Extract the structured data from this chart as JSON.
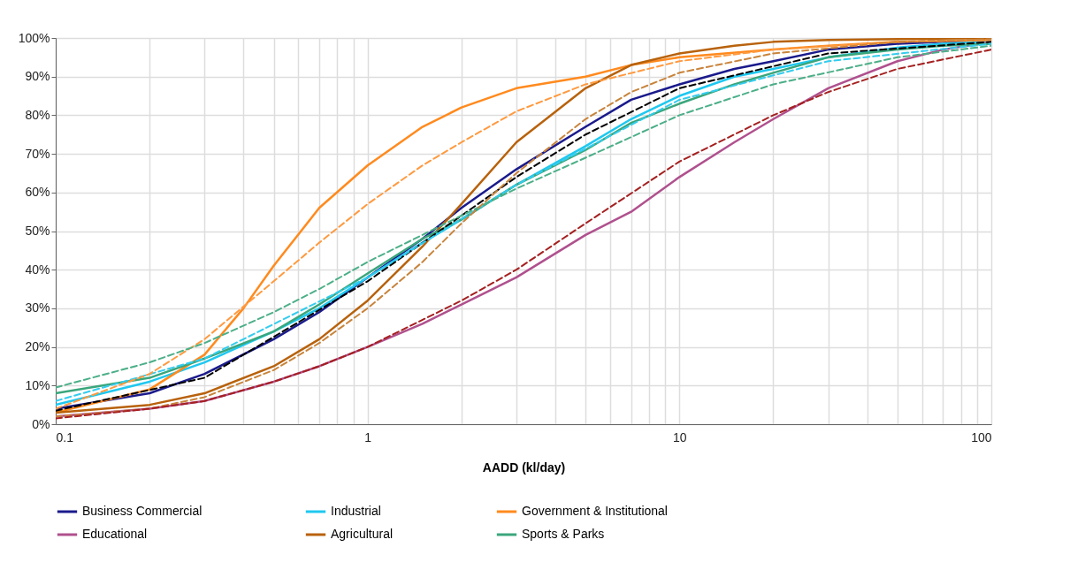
{
  "chart_data": {
    "type": "line",
    "xlabel": "AADD (kl/day)",
    "log": "x",
    "grid": true,
    "legend": "bottom",
    "marker": "none",
    "line_style": "solid",
    "xlim": [
      0.1,
      100
    ],
    "xticks": [
      0.1,
      {
        "value": 0.2,
        "label": null
      },
      {
        "value": 0.3,
        "label": null
      },
      {
        "value": 0.4,
        "label": null
      },
      {
        "value": 0.5,
        "label": null
      },
      {
        "value": 0.6,
        "label": null
      },
      {
        "value": 0.7,
        "label": null
      },
      {
        "value": 0.8,
        "label": null
      },
      {
        "value": 0.9,
        "label": null
      },
      1,
      {
        "value": 2,
        "label": null
      },
      {
        "value": 3,
        "label": null
      },
      {
        "value": 4,
        "label": null
      },
      {
        "value": 5,
        "label": null
      },
      {
        "value": 6,
        "label": null
      },
      {
        "value": 7,
        "label": null
      },
      {
        "value": 8,
        "label": null
      },
      {
        "value": 9,
        "label": null
      },
      10,
      {
        "value": 20,
        "label": null
      },
      {
        "value": 30,
        "label": null
      },
      {
        "value": 40,
        "label": null
      },
      {
        "value": 50,
        "label": null
      },
      {
        "value": 60,
        "label": null
      },
      {
        "value": 70,
        "label": null
      },
      {
        "value": 80,
        "label": null
      },
      {
        "value": 90,
        "label": null
      },
      100
    ],
    "ylim": [
      0,
      100
    ],
    "yticks": [
      {
        "value": 0,
        "label": "0%"
      },
      {
        "value": 10,
        "label": "10%"
      },
      {
        "value": 20,
        "label": "20%"
      },
      {
        "value": 30,
        "label": "30%"
      },
      {
        "value": 40,
        "label": "40%"
      },
      {
        "value": 50,
        "label": "50%"
      },
      {
        "value": 60,
        "label": "60%"
      },
      {
        "value": 70,
        "label": "70%"
      },
      {
        "value": 80,
        "label": "80%"
      },
      {
        "value": 90,
        "label": "90%"
      },
      {
        "value": 100,
        "label": "100%"
      }
    ],
    "series": [
      {
        "color": "#000000",
        "line_style": "dashed",
        "x": [
          0.1,
          0.3,
          1,
          2,
          3,
          5,
          10,
          30,
          100
        ],
        "values": [
          3.5,
          12,
          37,
          54,
          64,
          75,
          87,
          96,
          99
        ]
      },
      {
        "color": "#33ccee",
        "line_style": "dashed",
        "x": [
          0.1,
          0.3,
          1,
          3,
          10,
          30,
          100
        ],
        "values": [
          6,
          17,
          38,
          62,
          84,
          94,
          98.5
        ]
      },
      {
        "color": "#ff9a40",
        "line_style": "dashed",
        "x": [
          0.1,
          0.2,
          0.3,
          0.5,
          0.7,
          1,
          1.5,
          2,
          3,
          5,
          10,
          20,
          50,
          100
        ],
        "values": [
          4,
          13,
          22,
          37,
          47,
          57,
          67,
          73,
          81,
          88,
          94,
          97,
          99,
          99.5
        ]
      },
      {
        "color": "#4caf88",
        "line_style": "dashed",
        "x": [
          0.1,
          0.2,
          0.3,
          0.5,
          0.7,
          1,
          2,
          3,
          5,
          10,
          20,
          50,
          100
        ],
        "values": [
          9.5,
          16,
          21,
          29,
          35,
          42,
          54,
          61,
          69,
          80,
          88,
          95,
          98
        ]
      },
      {
        "color": "#c8843c",
        "line_style": "dashed",
        "x": [
          0.1,
          0.2,
          0.3,
          0.5,
          0.7,
          1,
          1.5,
          2,
          3,
          5,
          7,
          10,
          20,
          50,
          100
        ],
        "values": [
          2,
          4,
          7,
          14,
          21,
          30,
          42,
          52,
          65,
          79,
          86,
          91,
          96,
          99,
          99.7
        ]
      },
      {
        "color": "#a52020",
        "line_style": "dashed",
        "x": [
          0.1,
          0.2,
          0.3,
          0.5,
          0.7,
          1,
          2,
          3,
          5,
          10,
          20,
          30,
          50,
          100
        ],
        "values": [
          1.5,
          4,
          6,
          11,
          15,
          20,
          32,
          40,
          52,
          68,
          80,
          86,
          92,
          97
        ]
      },
      {
        "name": "Business Commercial",
        "color": "#1a1a8c",
        "x": [
          0.1,
          0.2,
          0.3,
          0.5,
          0.7,
          1,
          1.5,
          2,
          3,
          5,
          7,
          10,
          15,
          20,
          30,
          50,
          70,
          100
        ],
        "values": [
          4,
          8,
          13,
          22,
          29,
          38,
          48,
          56,
          66,
          77,
          84,
          88,
          92,
          94,
          97,
          98.5,
          99,
          99.5
        ]
      },
      {
        "name": "Industrial",
        "color": "#1ec8f0",
        "x": [
          0.1,
          0.2,
          0.3,
          0.5,
          0.7,
          1,
          1.5,
          2,
          3,
          5,
          7,
          10,
          15,
          20,
          30,
          50,
          70,
          100
        ],
        "values": [
          5,
          11,
          16,
          24,
          30,
          38,
          47,
          53,
          62,
          72,
          79,
          85,
          90,
          92,
          95,
          97.5,
          98.5,
          99
        ]
      },
      {
        "name": "Government & Institutional",
        "color": "#ff8a1e",
        "x": [
          0.1,
          0.2,
          0.3,
          0.4,
          0.5,
          0.7,
          1,
          1.5,
          2,
          3,
          5,
          7,
          10,
          20,
          30,
          50,
          100
        ],
        "values": [
          3,
          9,
          18,
          30,
          41,
          56,
          67,
          77,
          82,
          87,
          90,
          93,
          95,
          97,
          98,
          99,
          99.5
        ]
      },
      {
        "name": "Educational",
        "color": "#b0508e",
        "x": [
          0.1,
          0.2,
          0.3,
          0.5,
          0.7,
          1,
          1.5,
          2,
          3,
          5,
          7,
          10,
          15,
          20,
          30,
          50,
          70,
          100
        ],
        "values": [
          2,
          4,
          6,
          11,
          15,
          20,
          26,
          31,
          38,
          49,
          55,
          64,
          73,
          79,
          87,
          94,
          97,
          99
        ]
      },
      {
        "name": "Agricultural",
        "color": "#b8620c",
        "x": [
          0.1,
          0.2,
          0.3,
          0.5,
          0.7,
          1,
          1.5,
          2,
          3,
          5,
          7,
          10,
          15,
          20,
          30,
          100
        ],
        "values": [
          3,
          5,
          8,
          15,
          22,
          32,
          46,
          57,
          73,
          87,
          93,
          96,
          98,
          99,
          99.5,
          100
        ]
      },
      {
        "name": "Sports & Parks",
        "color": "#3aa67c",
        "x": [
          0.1,
          0.2,
          0.3,
          0.5,
          0.7,
          1,
          1.5,
          2,
          3,
          5,
          7,
          10,
          15,
          20,
          30,
          50,
          70,
          100
        ],
        "values": [
          8,
          12,
          17,
          24,
          31,
          39,
          48,
          53,
          62,
          71,
          78,
          83,
          88,
          91,
          95,
          97,
          98,
          98.5
        ]
      }
    ]
  }
}
